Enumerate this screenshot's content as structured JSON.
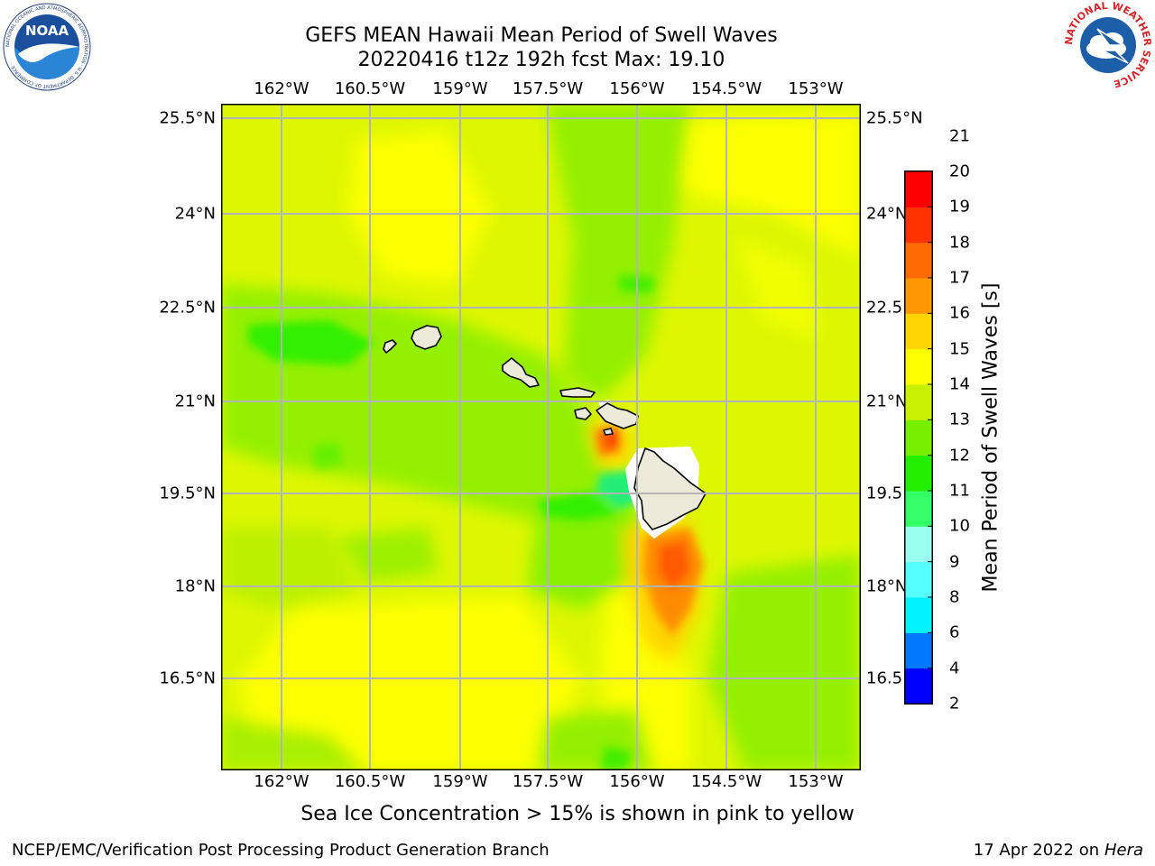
{
  "header": {
    "title_line1": "GEFS MEAN Hawaii Mean Period of Swell Waves",
    "title_line2": "20220416 t12z 192h fcst   Max: 19.10"
  },
  "map": {
    "lon_ticks": [
      "162°W",
      "160.5°W",
      "159°W",
      "157.5°W",
      "156°W",
      "154.5°W",
      "153°W"
    ],
    "lat_ticks": [
      "25.5°N",
      "24°N",
      "22.5°N",
      "21°N",
      "19.5°N",
      "18°N",
      "16.5°N"
    ],
    "lat_ticks_right": [
      "25.5°N",
      "24°N",
      "22.5",
      "21°N",
      "19.5",
      "18°N",
      "16.5"
    ],
    "land_color": "#ecebd9",
    "gridline_color": "#b4b4b4",
    "islands": [
      "Niihau",
      "Kauai",
      "Oahu",
      "Molokai",
      "Lanai",
      "Maui",
      "Kahoolawe",
      "Hawaii"
    ]
  },
  "colorbar": {
    "title": "Mean Period of Swell Waves [s]",
    "levels": [
      "2",
      "4",
      "6",
      "8",
      "9",
      "10",
      "11",
      "12",
      "13",
      "14",
      "15",
      "16",
      "17",
      "18",
      "19",
      "20",
      "21"
    ],
    "colors": [
      "#0000ff",
      "#0078ff",
      "#00f2ff",
      "#55ffff",
      "#99ffee",
      "#33ff66",
      "#22ee00",
      "#77f000",
      "#c8f000",
      "#fcff00",
      "#ffd400",
      "#ff9800",
      "#ff6a00",
      "#ff3200",
      "#ff0000"
    ]
  },
  "caption": "Sea Ice Concentration > 15% is shown in pink to yellow",
  "footer": {
    "left": "NCEP/EMC/Verification Post Processing Product Generation Branch",
    "date": "17 Apr 2022 on",
    "machine": "Hera"
  },
  "logos": {
    "noaa_text": "NOAA",
    "noaa_ring": "NATIONAL OCEANIC AND ATMOSPHERIC ADMINISTRATION · U.S. DEPARTMENT OF COMMERCE ·",
    "nws_ring": "NATIONAL WEATHER SERVICE"
  }
}
